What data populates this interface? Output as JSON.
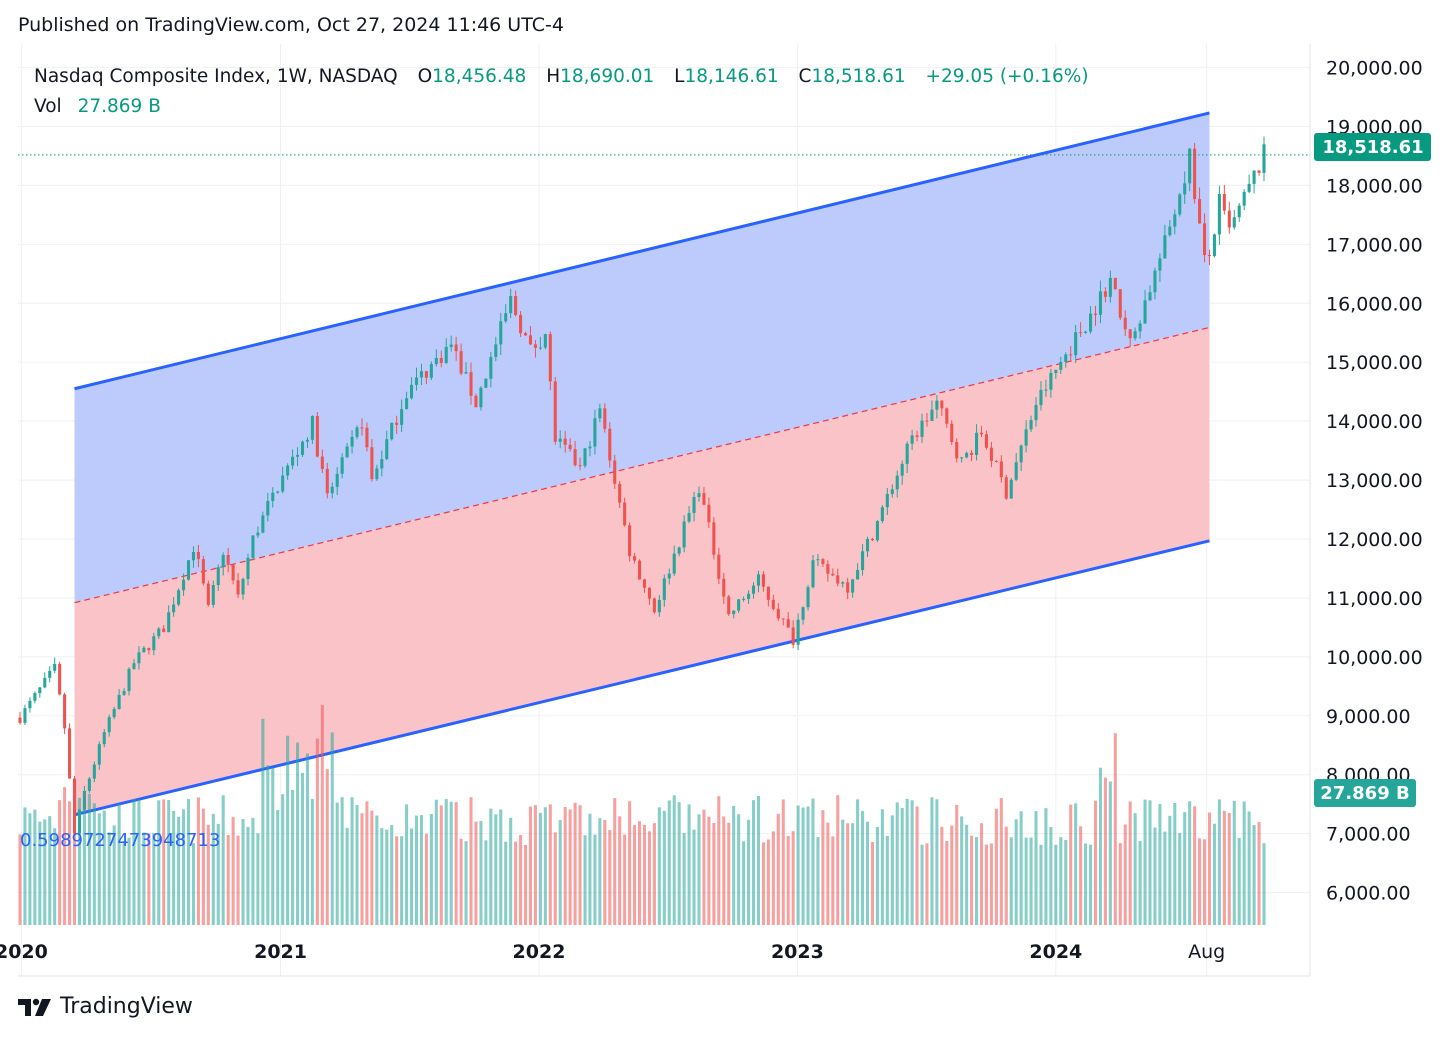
{
  "header": {
    "published": "Published on TradingView.com, Oct 27, 2024 11:46 UTC-4"
  },
  "legend": {
    "symbol": "Nasdaq Composite Index, 1W, NASDAQ",
    "o_label": "O",
    "o_value": "18,456.48",
    "h_label": "H",
    "h_value": "18,690.01",
    "l_label": "L",
    "l_value": "18,146.61",
    "c_label": "C",
    "c_value": "18,518.61",
    "change": "+29.05 (+0.16%)",
    "vol_label": "Vol",
    "vol_value": "27.869 B"
  },
  "channel_label": "0.5989727473948713",
  "price_badge": "18,518.61",
  "volume_badge": "27.869 B",
  "footer": {
    "brand": "TradingView"
  },
  "colors": {
    "up": "#26a69a",
    "down": "#ef5350",
    "channel_line": "#2962ff",
    "upper_fill": "#bccbfb",
    "lower_fill": "#f9c3c8",
    "grid": "#eef0f3",
    "text": "#131722",
    "channel_label": "#2962ff"
  },
  "chart_data": {
    "type": "candlestick",
    "title": "Nasdaq Composite Index, 1W, NASDAQ",
    "x_ticks": [
      "2020",
      "2021",
      "2022",
      "2023",
      "2024",
      "Aug"
    ],
    "y_ticks": [
      "20,000.00",
      "19,000.00",
      "18,000.00",
      "17,000.00",
      "16,000.00",
      "15,000.00",
      "14,000.00",
      "13,000.00",
      "12,000.00",
      "11,000.00",
      "10,000.00",
      "9,000.00",
      "8,000.00",
      "7,000.00",
      "6,000.00"
    ],
    "ylim": [
      5450,
      20400
    ],
    "last_price": 18518.61,
    "channel": {
      "start_date": "2020-03-16",
      "end_date": "2024-08-05",
      "upper": [
        14550,
        19230
      ],
      "middle": [
        10920,
        15590
      ],
      "lower": [
        7320,
        11970
      ]
    },
    "price_path": [
      [
        "2019-12-30",
        8970
      ],
      [
        "2020-02-17",
        9800
      ],
      [
        "2020-03-02",
        8800
      ],
      [
        "2020-03-16",
        7000
      ],
      [
        "2020-03-30",
        7700
      ],
      [
        "2020-04-27",
        8700
      ],
      [
        "2020-06-08",
        9900
      ],
      [
        "2020-07-20",
        10500
      ],
      [
        "2020-09-01",
        11900
      ],
      [
        "2020-09-21",
        10800
      ],
      [
        "2020-10-12",
        11800
      ],
      [
        "2020-11-02",
        11000
      ],
      [
        "2020-11-23",
        12000
      ],
      [
        "2020-12-28",
        12900
      ],
      [
        "2021-02-15",
        13950
      ],
      [
        "2021-03-08",
        12700
      ],
      [
        "2021-04-26",
        14000
      ],
      [
        "2021-05-10",
        13000
      ],
      [
        "2021-06-28",
        14500
      ],
      [
        "2021-08-30",
        15300
      ],
      [
        "2021-10-04",
        14300
      ],
      [
        "2021-11-22",
        16050
      ],
      [
        "2021-12-20",
        15200
      ],
      [
        "2022-01-10",
        15500
      ],
      [
        "2022-01-24",
        13700
      ],
      [
        "2022-02-28",
        13200
      ],
      [
        "2022-03-28",
        14200
      ],
      [
        "2022-05-09",
        11800
      ],
      [
        "2022-06-13",
        10800
      ],
      [
        "2022-08-15",
        12900
      ],
      [
        "2022-09-26",
        10700
      ],
      [
        "2022-10-17",
        11000
      ],
      [
        "2022-11-07",
        11300
      ],
      [
        "2022-12-26",
        10300
      ],
      [
        "2023-01-23",
        11600
      ],
      [
        "2023-03-13",
        11200
      ],
      [
        "2023-04-17",
        12100
      ],
      [
        "2023-06-12",
        13700
      ],
      [
        "2023-07-17",
        14300
      ],
      [
        "2023-08-21",
        13300
      ],
      [
        "2023-09-18",
        13800
      ],
      [
        "2023-10-23",
        12800
      ],
      [
        "2023-12-04",
        14300
      ],
      [
        "2024-01-08",
        15000
      ],
      [
        "2024-02-19",
        15800
      ],
      [
        "2024-03-18",
        16400
      ],
      [
        "2024-04-15",
        15300
      ],
      [
        "2024-06-03",
        17000
      ],
      [
        "2024-07-08",
        18500
      ],
      [
        "2024-07-29",
        16700
      ],
      [
        "2024-08-05",
        16800
      ],
      [
        "2024-08-19",
        17700
      ],
      [
        "2024-09-02",
        17200
      ],
      [
        "2024-10-21",
        18518.61
      ]
    ]
  }
}
